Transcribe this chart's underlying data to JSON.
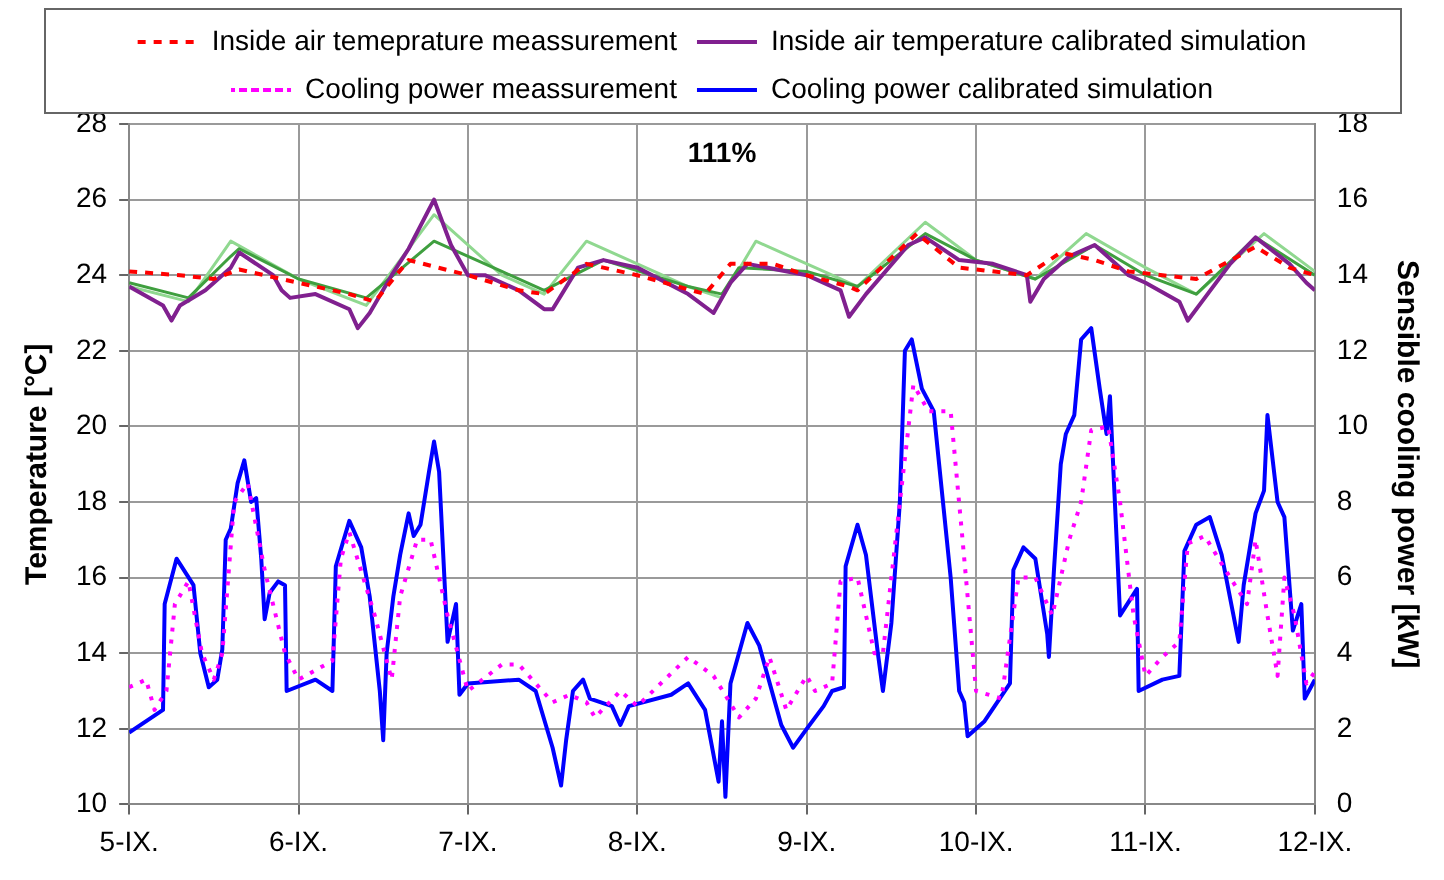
{
  "chart_data": {
    "type": "line",
    "ylabel": "Temperature [°C]",
    "y2label": "Sensible cooling power [kW]",
    "annotations": [
      "111%"
    ],
    "xlim": [
      "--09-05",
      "--09-12"
    ],
    "xticks": [
      {
        "value": "--09-05",
        "label": "5-IX."
      },
      {
        "value": "--09-06",
        "label": "6-IX."
      },
      {
        "value": "--09-07",
        "label": "7-IX."
      },
      {
        "value": "--09-08",
        "label": "8-IX."
      },
      {
        "value": "--09-09",
        "label": "9-IX."
      },
      {
        "value": "--09-10",
        "label": "10-IX."
      },
      {
        "value": "--09-11",
        "label": "11-IX."
      },
      {
        "value": "--09-12",
        "label": "12-IX."
      }
    ],
    "ylim": [
      10,
      28
    ],
    "yticks": [
      10,
      12,
      14,
      16,
      18,
      20,
      22,
      24,
      26,
      28
    ],
    "y2lim": [
      0,
      18
    ],
    "y2ticks": [
      0,
      2,
      4,
      6,
      8,
      10,
      12,
      14,
      16,
      18
    ],
    "grid": true,
    "legend": "top",
    "marker": "none",
    "series": [
      {
        "name": "Inside air temeprature meassurement",
        "color": "#ff0000",
        "line_style": "dashed",
        "x": [
          "--09-05",
          "--09-05T07:12",
          "--09-05T12:00",
          "--09-05T15:36",
          "--09-06",
          "--09-06T07:12",
          "--09-06T10:48",
          "--09-06T15:36",
          "--09-07",
          "--09-07T07:12",
          "--09-07T10:48",
          "--09-07T16:48",
          "--09-08",
          "--09-08T09:36",
          "--09-08T13:12",
          "--09-08T19:12",
          "--09-09",
          "--09-09T06:00",
          "--09-09T07:12",
          "--09-09T15:36",
          "--09-09T21:36",
          "--09-10T07:12",
          "--09-10T12:00",
          "--09-10T16:48",
          "--09-10T21:36",
          "--09-11T07:12",
          "--09-11T15:36",
          "--09-11T20:24",
          "--09-12"
        ],
        "values": [
          24.1,
          24.0,
          23.9,
          24.15,
          23.8,
          23.5,
          23.3,
          24.4,
          24.0,
          23.6,
          23.5,
          24.3,
          24.0,
          23.5,
          24.3,
          24.3,
          24.0,
          23.7,
          23.6,
          25.1,
          24.2,
          24.0,
          24.6,
          24.4,
          24.1,
          23.9,
          24.75,
          24.2,
          24.0
        ]
      },
      {
        "name": "Inside air temperature calibrated simulation",
        "color": "#80208f",
        "line_style": "solid",
        "x": [
          "--09-05",
          "--09-05T04:48",
          "--09-05T06:00",
          "--09-05T07:12",
          "--09-05T10:48",
          "--09-05T14:24",
          "--09-05T15:36",
          "--09-05T20:24",
          "--09-05T21:36",
          "--09-05T22:48",
          "--09-06T02:24",
          "--09-06T07:12",
          "--09-06T08:24",
          "--09-06T10:05",
          "--09-06T13:12",
          "--09-06T15:36",
          "--09-06T19:12",
          "--09-06T21:36",
          "--09-07",
          "--09-07T02:24",
          "--09-07T07:12",
          "--09-07T10:48",
          "--09-07T12:00",
          "--09-07T15:36",
          "--09-07T19:12",
          "--09-08",
          "--09-08T07:12",
          "--09-08T10:48",
          "--09-08T13:12",
          "--09-08T15:36",
          "--09-09",
          "--09-09T04:48",
          "--09-09T06:00",
          "--09-09T08:24",
          "--09-09T14:24",
          "--09-09T16:48",
          "--09-09T21:36",
          "--09-10T02:24",
          "--09-10T07:12",
          "--09-10T07:41",
          "--09-10T09:36",
          "--09-10T13:12",
          "--09-10T16:48",
          "--09-10T21:36",
          "--09-11",
          "--09-11T04:48",
          "--09-11T06:00",
          "--09-11T08:24",
          "--09-11T12:00",
          "--09-11T15:36",
          "--09-11T20:24",
          "--09-11T22:48",
          "--09-12"
        ],
        "values": [
          23.7,
          23.2,
          22.8,
          23.2,
          23.6,
          24.2,
          24.6,
          24.0,
          23.6,
          23.4,
          23.5,
          23.1,
          22.6,
          23.0,
          24.0,
          24.7,
          26.0,
          24.8,
          24.0,
          24.0,
          23.6,
          23.1,
          23.1,
          24.2,
          24.4,
          24.2,
          23.5,
          23.0,
          23.8,
          24.3,
          24.0,
          23.6,
          22.9,
          23.5,
          24.8,
          25.0,
          24.4,
          24.3,
          24.0,
          23.3,
          23.9,
          24.5,
          24.8,
          24.0,
          23.8,
          23.3,
          22.8,
          23.4,
          24.3,
          25.0,
          24.3,
          23.8,
          23.6
        ]
      },
      {
        "name": "Cooling power meassurement",
        "color": "#ff00ff",
        "line_style": "dotted",
        "axis": "y2",
        "x": [
          "--09-05",
          "--09-05T02:24",
          "--09-05T03:36",
          "--09-05T05:17",
          "--09-05T06:29",
          "--09-05T08:24",
          "--09-05T10:19",
          "--09-05T12:00",
          "--09-05T13:12",
          "--09-05T14:53",
          "--09-05T16:48",
          "--09-05T19:12",
          "--09-05T22:05",
          "--09-06",
          "--09-06T04:48",
          "--09-06T06:00",
          "--09-06T07:12",
          "--09-06T10:48",
          "--09-06T13:12",
          "--09-06T14:24",
          "--09-06T16:48",
          "--09-06T18:43",
          "--09-06T21:07",
          "--09-07",
          "--09-07T04:48",
          "--09-07T07:12",
          "--09-07T12:00",
          "--09-07T14:24",
          "--09-07T16:48",
          "--09-07T18:00",
          "--09-07T21:36",
          "--09-08",
          "--09-08T07:12",
          "--09-08T10:48",
          "--09-08T14:24",
          "--09-08T16:48",
          "--09-08T18:43",
          "--09-08T21:07",
          "--09-09",
          "--09-09T01:12",
          "--09-09T03:36",
          "--09-09T04:48",
          "--09-09T07:12",
          "--09-09T09:36",
          "--09-09T10:48",
          "--09-09T13:12",
          "--09-09T15:07",
          "--09-09T17:17",
          "--09-09T20:24",
          "--09-09T22:05",
          "--09-10",
          "--09-10T03:36",
          "--09-10T06:00",
          "--09-10T08:24",
          "--09-10T10:48",
          "--09-10T13:12",
          "--09-10T14:53",
          "--09-10T16:19",
          "--09-10T18:43",
          "--09-10T20:24",
          "--09-10T22:19",
          "--09-11",
          "--09-11T02:24",
          "--09-11T04:48",
          "--09-11T06:00",
          "--09-11T08:24",
          "--09-11T12:00",
          "--09-11T14:24",
          "--09-11T15:36",
          "--09-11T17:17",
          "--09-11T18:43",
          "--09-11T19:41",
          "--09-11T21:07",
          "--09-11T22:48",
          "--09-12"
        ],
        "values": [
          3.1,
          3.3,
          2.5,
          3.0,
          5.3,
          5.9,
          4.0,
          3.3,
          4.0,
          8.0,
          8.5,
          6.2,
          4.0,
          3.3,
          3.8,
          6.5,
          7.2,
          5.0,
          3.3,
          5.5,
          7.0,
          7.0,
          5.0,
          3.0,
          3.7,
          3.7,
          2.7,
          2.9,
          2.7,
          2.3,
          3.0,
          2.6,
          3.9,
          3.4,
          2.3,
          2.8,
          3.9,
          2.5,
          3.4,
          3.0,
          3.2,
          5.9,
          6.0,
          4.0,
          4.0,
          8.0,
          11.1,
          10.4,
          10.4,
          7.0,
          3.0,
          2.8,
          6.0,
          6.0,
          5.0,
          7.0,
          8.0,
          9.9,
          10.0,
          8.0,
          5.0,
          3.4,
          3.9,
          4.3,
          6.9,
          7.1,
          6.0,
          5.3,
          7.0,
          5.0,
          3.4,
          6.0,
          5.0,
          3.2,
          3.5
        ]
      },
      {
        "name": "Cooling power calibrated simulation",
        "color": "#0000ff",
        "line_style": "solid",
        "axis": "y2",
        "x": [
          "--09-05",
          "--09-05T04:48",
          "--09-05T05:02",
          "--09-05T06:43",
          "--09-05T09:07",
          "--09-05T10:05",
          "--09-05T11:17",
          "--09-05T12:29",
          "--09-05T13:12",
          "--09-05T13:41",
          "--09-05T14:24",
          "--09-05T15:22",
          "--09-05T16:19",
          "--09-05T17:17",
          "--09-05T18:00",
          "--09-05T18:43",
          "--09-05T19:12",
          "--09-05T19:55",
          "--09-05T21:07",
          "--09-05T22:05",
          "--09-05T22:19",
          "--09-06T02:24",
          "--09-06T04:48",
          "--09-06T05:17",
          "--09-06T07:12",
          "--09-06T08:53",
          "--09-06T10:05",
          "--09-06T11:31",
          "--09-06T12:00",
          "--09-06T12:29",
          "--09-06T13:26",
          "--09-06T14:24",
          "--09-06T15:36",
          "--09-06T16:19",
          "--09-06T17:17",
          "--09-06T18:29",
          "--09-06T19:12",
          "--09-06T19:55",
          "--09-06T21:07",
          "--09-06T22:19",
          "--09-06T22:48",
          "--09-07",
          "--09-07T07:12",
          "--09-07T09:36",
          "--09-07T12:00",
          "--09-07T13:12",
          "--09-07T13:55",
          "--09-07T14:53",
          "--09-07T16:19",
          "--09-07T17:17",
          "--09-07T20:24",
          "--09-07T21:36",
          "--09-07T22:48",
          "--09-08T04:48",
          "--09-08T07:12",
          "--09-08T09:36",
          "--09-08T11:31",
          "--09-08T12:00",
          "--09-08T12:29",
          "--09-08T13:12",
          "--09-08T15:36",
          "--09-08T17:17",
          "--09-08T20:24",
          "--09-08T22:05",
          "--09-09",
          "--09-09T02:24",
          "--09-09T03:36",
          "--09-09T05:17",
          "--09-09T05:31",
          "--09-09T07:12",
          "--09-09T08:24",
          "--09-09T10:05",
          "--09-09T10:48",
          "--09-09T12:00",
          "--09-09T13:12",
          "--09-09T13:55",
          "--09-09T14:53",
          "--09-09T16:19",
          "--09-09T18:00",
          "--09-09T20:24",
          "--09-09T21:36",
          "--09-09T22:19",
          "--09-09T22:48",
          "--09-10T01:12",
          "--09-10T04:48",
          "--09-10T05:17",
          "--09-10T06:43",
          "--09-10T08:24",
          "--09-10T10:05",
          "--09-10T10:19",
          "--09-10T11:02",
          "--09-10T12:00",
          "--09-10T12:43",
          "--09-10T13:55",
          "--09-10T14:53",
          "--09-10T16:19",
          "--09-10T17:31",
          "--09-10T18:29",
          "--09-10T18:58",
          "--09-10T19:55",
          "--09-10T20:24",
          "--09-10T22:48",
          "--09-10T23:02",
          "--09-11T02:24",
          "--09-11T04:48",
          "--09-11T05:31",
          "--09-11T07:12",
          "--09-11T09:07",
          "--09-11T10:48",
          "--09-11T13:12",
          "--09-11T13:55",
          "--09-11T15:36",
          "--09-11T16:48",
          "--09-11T17:17",
          "--09-11T18:43",
          "--09-11T19:41",
          "--09-11T20:53",
          "--09-11T22:05",
          "--09-11T22:34",
          "--09-12"
        ],
        "values": [
          1.9,
          2.5,
          5.3,
          6.5,
          5.8,
          4.0,
          3.1,
          3.3,
          4.1,
          7.0,
          7.3,
          8.5,
          9.1,
          8.0,
          8.1,
          6.5,
          4.9,
          5.6,
          5.9,
          5.8,
          3.0,
          3.3,
          3.0,
          6.3,
          7.5,
          6.8,
          5.5,
          3.0,
          1.7,
          4.0,
          5.5,
          6.6,
          7.7,
          7.1,
          7.4,
          8.8,
          9.6,
          8.8,
          4.3,
          5.3,
          2.9,
          3.2,
          3.3,
          3.0,
          1.5,
          0.5,
          1.7,
          3.0,
          3.3,
          2.8,
          2.6,
          2.1,
          2.6,
          2.9,
          3.2,
          2.5,
          0.6,
          2.2,
          0.2,
          3.2,
          4.8,
          4.2,
          2.1,
          1.5,
          2.0,
          2.6,
          3.0,
          3.1,
          6.3,
          7.4,
          6.6,
          4.0,
          3.0,
          4.8,
          8.0,
          12.0,
          12.3,
          11.0,
          10.4,
          6.0,
          3.0,
          2.7,
          1.8,
          2.2,
          3.2,
          6.2,
          6.8,
          6.5,
          4.5,
          3.9,
          6.2,
          9.0,
          9.8,
          10.3,
          12.3,
          12.6,
          11.0,
          9.8,
          10.8,
          7.0,
          5.0,
          5.7,
          3.0,
          3.3,
          3.4,
          6.7,
          7.4,
          7.6,
          6.6,
          4.3,
          5.8,
          7.7,
          8.3,
          10.3,
          8.0,
          7.6,
          4.6,
          5.3,
          2.8,
          3.3
        ]
      },
      {
        "color": "#3f9f3f",
        "line_style": "solid",
        "x": [
          "--09-05",
          "--09-05T08:24",
          "--09-05T14:24",
          "--09-05T15:36",
          "--09-06",
          "--09-06T09:36",
          "--09-06T19:12",
          "--09-07T04:48",
          "--09-07T10:48",
          "--09-07T19:12",
          "--09-08T07:12",
          "--09-08T12:00",
          "--09-08T14:24",
          "--09-09",
          "--09-09T07:12",
          "--09-09T16:48",
          "--09-10",
          "--09-10T08:24",
          "--09-10T16:48",
          "--09-11",
          "--09-11T07:12",
          "--09-11T15:36",
          "--09-12"
        ],
        "values": [
          23.8,
          23.4,
          24.5,
          24.7,
          23.9,
          23.4,
          24.9,
          24.1,
          23.6,
          24.4,
          23.7,
          23.5,
          24.2,
          24.1,
          23.7,
          25.1,
          24.4,
          23.9,
          24.8,
          24.0,
          23.5,
          25.0,
          24.0
        ]
      },
      {
        "color": "#90d890",
        "line_style": "solid",
        "x": [
          "--09-05",
          "--09-05T08:24",
          "--09-05T14:24",
          "--09-06",
          "--09-06T09:36",
          "--09-06T19:12",
          "--09-07T04:48",
          "--09-07T10:48",
          "--09-07T16:48",
          "--09-08T07:12",
          "--09-08T12:00",
          "--09-08T16:48",
          "--09-09T04:48",
          "--09-09T07:12",
          "--09-09T16:48",
          "--09-10",
          "--09-10T08:24",
          "--09-10T15:36",
          "--09-11",
          "--09-11T07:12",
          "--09-11T16:48",
          "--09-12"
        ],
        "values": [
          23.7,
          23.3,
          24.9,
          23.9,
          23.2,
          25.6,
          24.0,
          23.5,
          24.9,
          23.7,
          23.4,
          24.9,
          23.9,
          23.7,
          25.4,
          24.4,
          23.9,
          25.1,
          24.2,
          23.5,
          25.1,
          24.1
        ]
      }
    ]
  }
}
